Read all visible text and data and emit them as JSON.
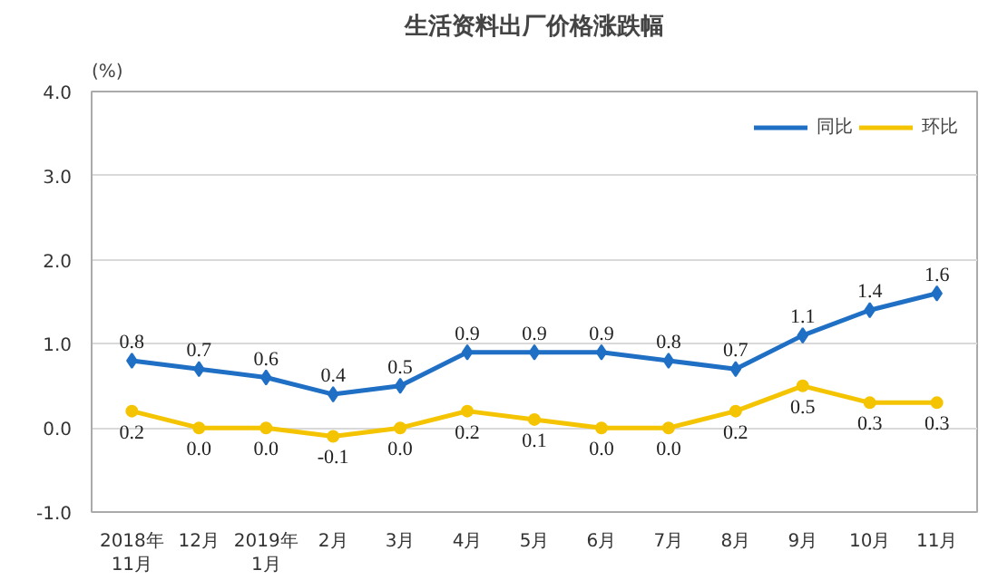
{
  "chart_data": {
    "type": "line",
    "title": "生活资料出厂价格涨跌幅",
    "ylabel": "(%)",
    "categories": [
      "2018年\n11月",
      "12月",
      "2019年\n1月",
      "2月",
      "3月",
      "4月",
      "5月",
      "6月",
      "7月",
      "8月",
      "9月",
      "10月",
      "11月"
    ],
    "series": [
      {
        "name": "同比",
        "color": "#1f6fc5",
        "marker": "diamond",
        "values": [
          0.8,
          0.7,
          0.6,
          0.4,
          0.5,
          0.9,
          0.9,
          0.9,
          0.8,
          0.7,
          1.1,
          1.4,
          1.6
        ],
        "value_labels": [
          "0.8",
          "0.7",
          "0.6",
          "0.4",
          "0.5",
          "0.9",
          "0.9",
          "0.9",
          "0.8",
          "0.7",
          "1.1",
          "1.4",
          "1.6"
        ]
      },
      {
        "name": "环比",
        "color": "#f5c400",
        "marker": "circle",
        "values": [
          0.2,
          0.0,
          0.0,
          -0.1,
          0.0,
          0.2,
          0.1,
          0.0,
          0.0,
          0.2,
          0.5,
          0.3,
          0.3
        ],
        "value_labels": [
          "0.2",
          "0.0",
          "0.0",
          "-0.1",
          "0.0",
          "0.2",
          "0.1",
          "0.0",
          "0.0",
          "0.2",
          "0.5",
          "0.3",
          "0.3"
        ]
      }
    ],
    "ylim": [
      -1,
      4
    ],
    "yticks": [
      {
        "value": -1,
        "label": "-1.0"
      },
      {
        "value": 0,
        "label": "0.0"
      },
      {
        "value": 1,
        "label": "1.0"
      },
      {
        "value": 2,
        "label": "2.0"
      },
      {
        "value": 3,
        "label": "3.0"
      },
      {
        "value": 4,
        "label": "4.0"
      }
    ],
    "grid": "y",
    "legend": "top right",
    "line_style": "solid"
  }
}
